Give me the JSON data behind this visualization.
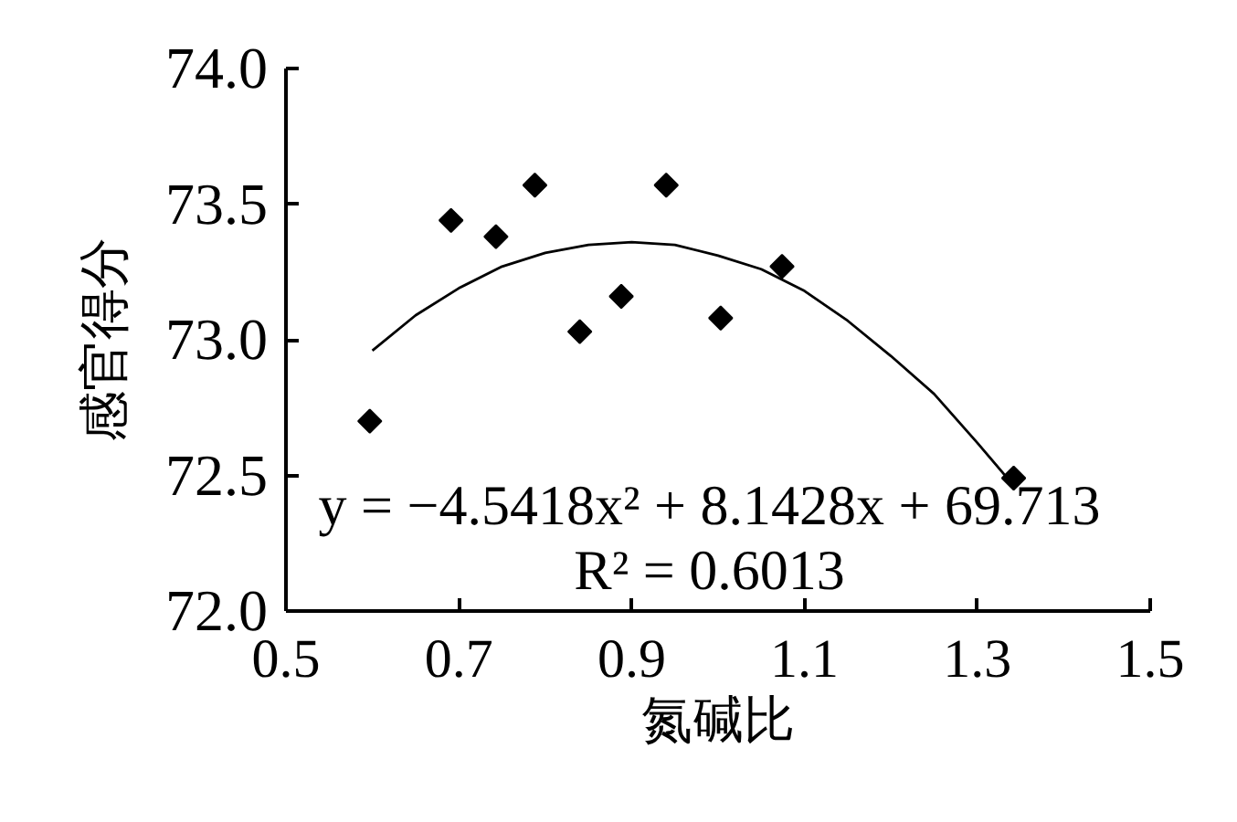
{
  "chart_data": {
    "type": "scatter",
    "xlabel": "氮碱比",
    "ylabel": "感官得分",
    "xlim": [
      0.5,
      1.5
    ],
    "ylim": [
      72.0,
      74.0
    ],
    "xticks": [
      0.5,
      0.7,
      0.9,
      1.1,
      1.3,
      1.5
    ],
    "yticks": [
      {
        "value": 72.0,
        "label": "72.0"
      },
      72.5,
      {
        "value": 73.0,
        "label": "73.0"
      },
      73.5,
      {
        "value": 74.0,
        "label": "74.0"
      }
    ],
    "series": [
      {
        "marker": "diamond",
        "color": "#000000",
        "x": [
          0.597,
          0.691,
          0.743,
          0.788,
          0.84,
          0.888,
          0.94,
          1.003,
          1.074,
          1.342
        ],
        "values": [
          72.7,
          73.44,
          73.38,
          73.57,
          73.03,
          73.16,
          73.57,
          73.08,
          73.27,
          72.49
        ]
      },
      {
        "type": "line",
        "color": "#000000",
        "x": [
          0.6,
          0.65,
          0.7,
          0.75,
          0.8,
          0.85,
          0.9,
          0.95,
          1.0,
          1.05,
          1.1,
          1.15,
          1.2,
          1.25,
          1.3,
          1.34
        ],
        "values": [
          72.96,
          73.09,
          73.19,
          73.27,
          73.32,
          73.35,
          73.36,
          73.35,
          73.31,
          73.26,
          73.18,
          73.07,
          72.94,
          72.8,
          72.62,
          72.47
        ]
      }
    ],
    "annotations": [
      "y = −4.5418x² + 8.1428x + 69.713",
      "R² = 0.6013"
    ]
  }
}
